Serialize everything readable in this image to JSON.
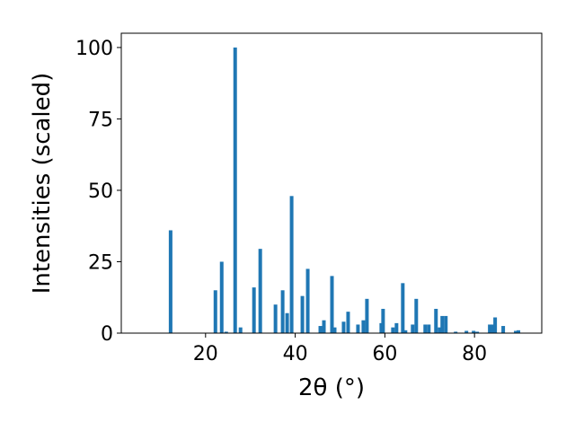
{
  "chart_data": {
    "type": "bar",
    "x_label": "2θ (°)",
    "y_label": "Intensities (scaled)",
    "x": [
      12.2,
      22.2,
      23.6,
      24.6,
      26.6,
      27.8,
      30.8,
      32.2,
      35.6,
      37.2,
      38.2,
      39.2,
      41.6,
      42.8,
      45.6,
      46.4,
      48.2,
      48.8,
      50.8,
      51.8,
      54.0,
      55.2,
      56.0,
      59.2,
      59.6,
      61.8,
      62.6,
      64.0,
      64.6,
      66.2,
      67.0,
      69.0,
      69.8,
      71.4,
      72.2,
      72.8,
      73.6,
      75.8,
      78.2,
      79.8,
      80.6,
      83.4,
      84.0,
      84.6,
      86.4,
      89.2,
      89.8
    ],
    "values": [
      36,
      15,
      25,
      0.5,
      100,
      2,
      16,
      29.5,
      10,
      15,
      7,
      48,
      13,
      22.5,
      2.5,
      4.5,
      20,
      2,
      4,
      7.5,
      3,
      4.5,
      12,
      3.5,
      8.5,
      2,
      3.5,
      17.5,
      1,
      3,
      12,
      3,
      3,
      8.5,
      2,
      6,
      6,
      0.5,
      0.8,
      0.8,
      0.5,
      3,
      3,
      5.5,
      2.5,
      0.8,
      1
    ],
    "color": "#1f77b4",
    "xlim": [
      1.2,
      95.0
    ],
    "ylim": [
      0,
      105
    ],
    "xticks": [
      20,
      40,
      60,
      80
    ],
    "yticks": [
      0,
      25,
      50,
      75,
      100
    ]
  }
}
